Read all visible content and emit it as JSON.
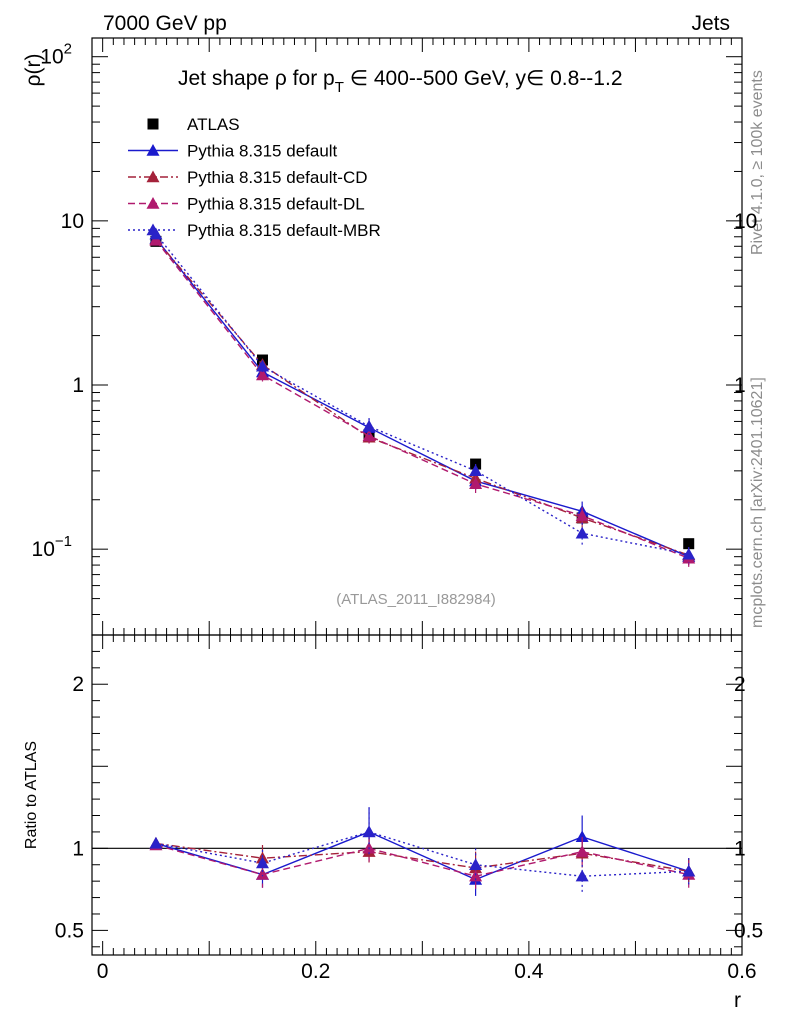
{
  "header": {
    "left": "7000 GeV pp",
    "right": "Jets"
  },
  "side_text": {
    "rivet": "Rivet 4.1.0, ≥ 100k events",
    "mcplots": "mcplots.cern.ch [arXiv:2401.10621]"
  },
  "chart_data": [
    {
      "panel": "main",
      "type": "line",
      "title": {
        "prefix": "Jet shape ρ for p",
        "sub": "T",
        "suffix": " ∈ 400--500 GeV, y∈ 0.8--1.2"
      },
      "watermark": "(ATLAS_2011_I882984)",
      "ylabel": "ρ(r)",
      "yscale": "log",
      "ylim": [
        0.03,
        130
      ],
      "xlim": [
        -0.01,
        0.6
      ],
      "y_ticks": [
        {
          "v": 0.1,
          "base": "10",
          "exp": "−1"
        },
        {
          "v": 1,
          "base": "1",
          "exp": ""
        },
        {
          "v": 10,
          "base": "10",
          "exp": ""
        },
        {
          "v": 100,
          "base": "10",
          "exp": "2"
        }
      ],
      "x": [
        0.05,
        0.15,
        0.25,
        0.35,
        0.45,
        0.55
      ],
      "series": [
        {
          "name": "ATLAS",
          "color": "#000000",
          "style": "data",
          "values": [
            7.5,
            1.42,
            0.5,
            0.33,
            0.155,
            0.108
          ],
          "errors": [
            0.2,
            0.06,
            0.04,
            0.01,
            0.015,
            0.005
          ]
        },
        {
          "name": "Pythia 8.315 default",
          "color": "#1a1acd",
          "style": "solid",
          "values": [
            7.8,
            1.2,
            0.55,
            0.26,
            0.17,
            0.09
          ],
          "errors": [
            0.3,
            0.1,
            0.07,
            0.03,
            0.025,
            0.01
          ]
        },
        {
          "name": "Pythia 8.315 default-CD",
          "color": "#a4223a",
          "style": "dashdot",
          "values": [
            7.7,
            1.33,
            0.48,
            0.27,
            0.155,
            0.092
          ],
          "errors": [
            0.3,
            0.1,
            0.05,
            0.03,
            0.02,
            0.01
          ]
        },
        {
          "name": "Pythia 8.315 default-DL",
          "color": "#b01a6e",
          "style": "dashed",
          "values": [
            7.6,
            1.15,
            0.49,
            0.25,
            0.16,
            0.088
          ],
          "errors": [
            0.3,
            0.1,
            0.05,
            0.03,
            0.02,
            0.01
          ]
        },
        {
          "name": "Pythia 8.315 default-MBR",
          "color": "#2a22c8",
          "style": "dotted",
          "values": [
            8.3,
            1.3,
            0.56,
            0.3,
            0.125,
            0.093
          ],
          "errors": [
            0.3,
            0.1,
            0.07,
            0.03,
            0.02,
            0.01
          ]
        }
      ]
    },
    {
      "panel": "ratio",
      "type": "line",
      "ylabel": "Ratio to ATLAS",
      "xlabel": "r",
      "ylim": [
        0.35,
        2.3
      ],
      "xlim": [
        -0.01,
        0.6
      ],
      "reference_line": 1,
      "y_ticks": [
        {
          "v": 0.5,
          "base": "0.5",
          "exp": ""
        },
        {
          "v": 1,
          "base": "1",
          "exp": ""
        },
        {
          "v": 2,
          "base": "2",
          "exp": ""
        }
      ],
      "x_ticks": [
        {
          "v": 0,
          "label": "0"
        },
        {
          "v": 0.2,
          "label": "0.2"
        },
        {
          "v": 0.4,
          "label": "0.4"
        },
        {
          "v": 0.6,
          "label": "0.6"
        }
      ],
      "x": [
        0.05,
        0.15,
        0.25,
        0.35,
        0.45,
        0.55
      ],
      "series": [
        {
          "name": "Pythia 8.315 default",
          "color": "#1a1acd",
          "style": "solid",
          "values": [
            1.03,
            0.84,
            1.1,
            0.81,
            1.07,
            0.86
          ],
          "errors": [
            0.03,
            0.08,
            0.15,
            0.1,
            0.13,
            0.08
          ]
        },
        {
          "name": "Pythia 8.315 default-CD",
          "color": "#a4223a",
          "style": "dashdot",
          "values": [
            1.03,
            0.94,
            0.98,
            0.88,
            0.97,
            0.86
          ],
          "errors": [
            0.03,
            0.08,
            0.08,
            0.1,
            0.09,
            0.08
          ]
        },
        {
          "name": "Pythia 8.315 default-DL",
          "color": "#b01a6e",
          "style": "dashed",
          "values": [
            1.02,
            0.84,
            1.0,
            0.83,
            0.98,
            0.84
          ],
          "errors": [
            0.03,
            0.08,
            0.08,
            0.1,
            0.09,
            0.08
          ]
        },
        {
          "name": "Pythia 8.315 default-MBR",
          "color": "#2a22c8",
          "style": "dotted",
          "values": [
            1.03,
            0.91,
            1.1,
            0.9,
            0.83,
            0.86
          ],
          "errors": [
            0.03,
            0.08,
            0.15,
            0.1,
            0.1,
            0.08
          ]
        }
      ]
    }
  ]
}
